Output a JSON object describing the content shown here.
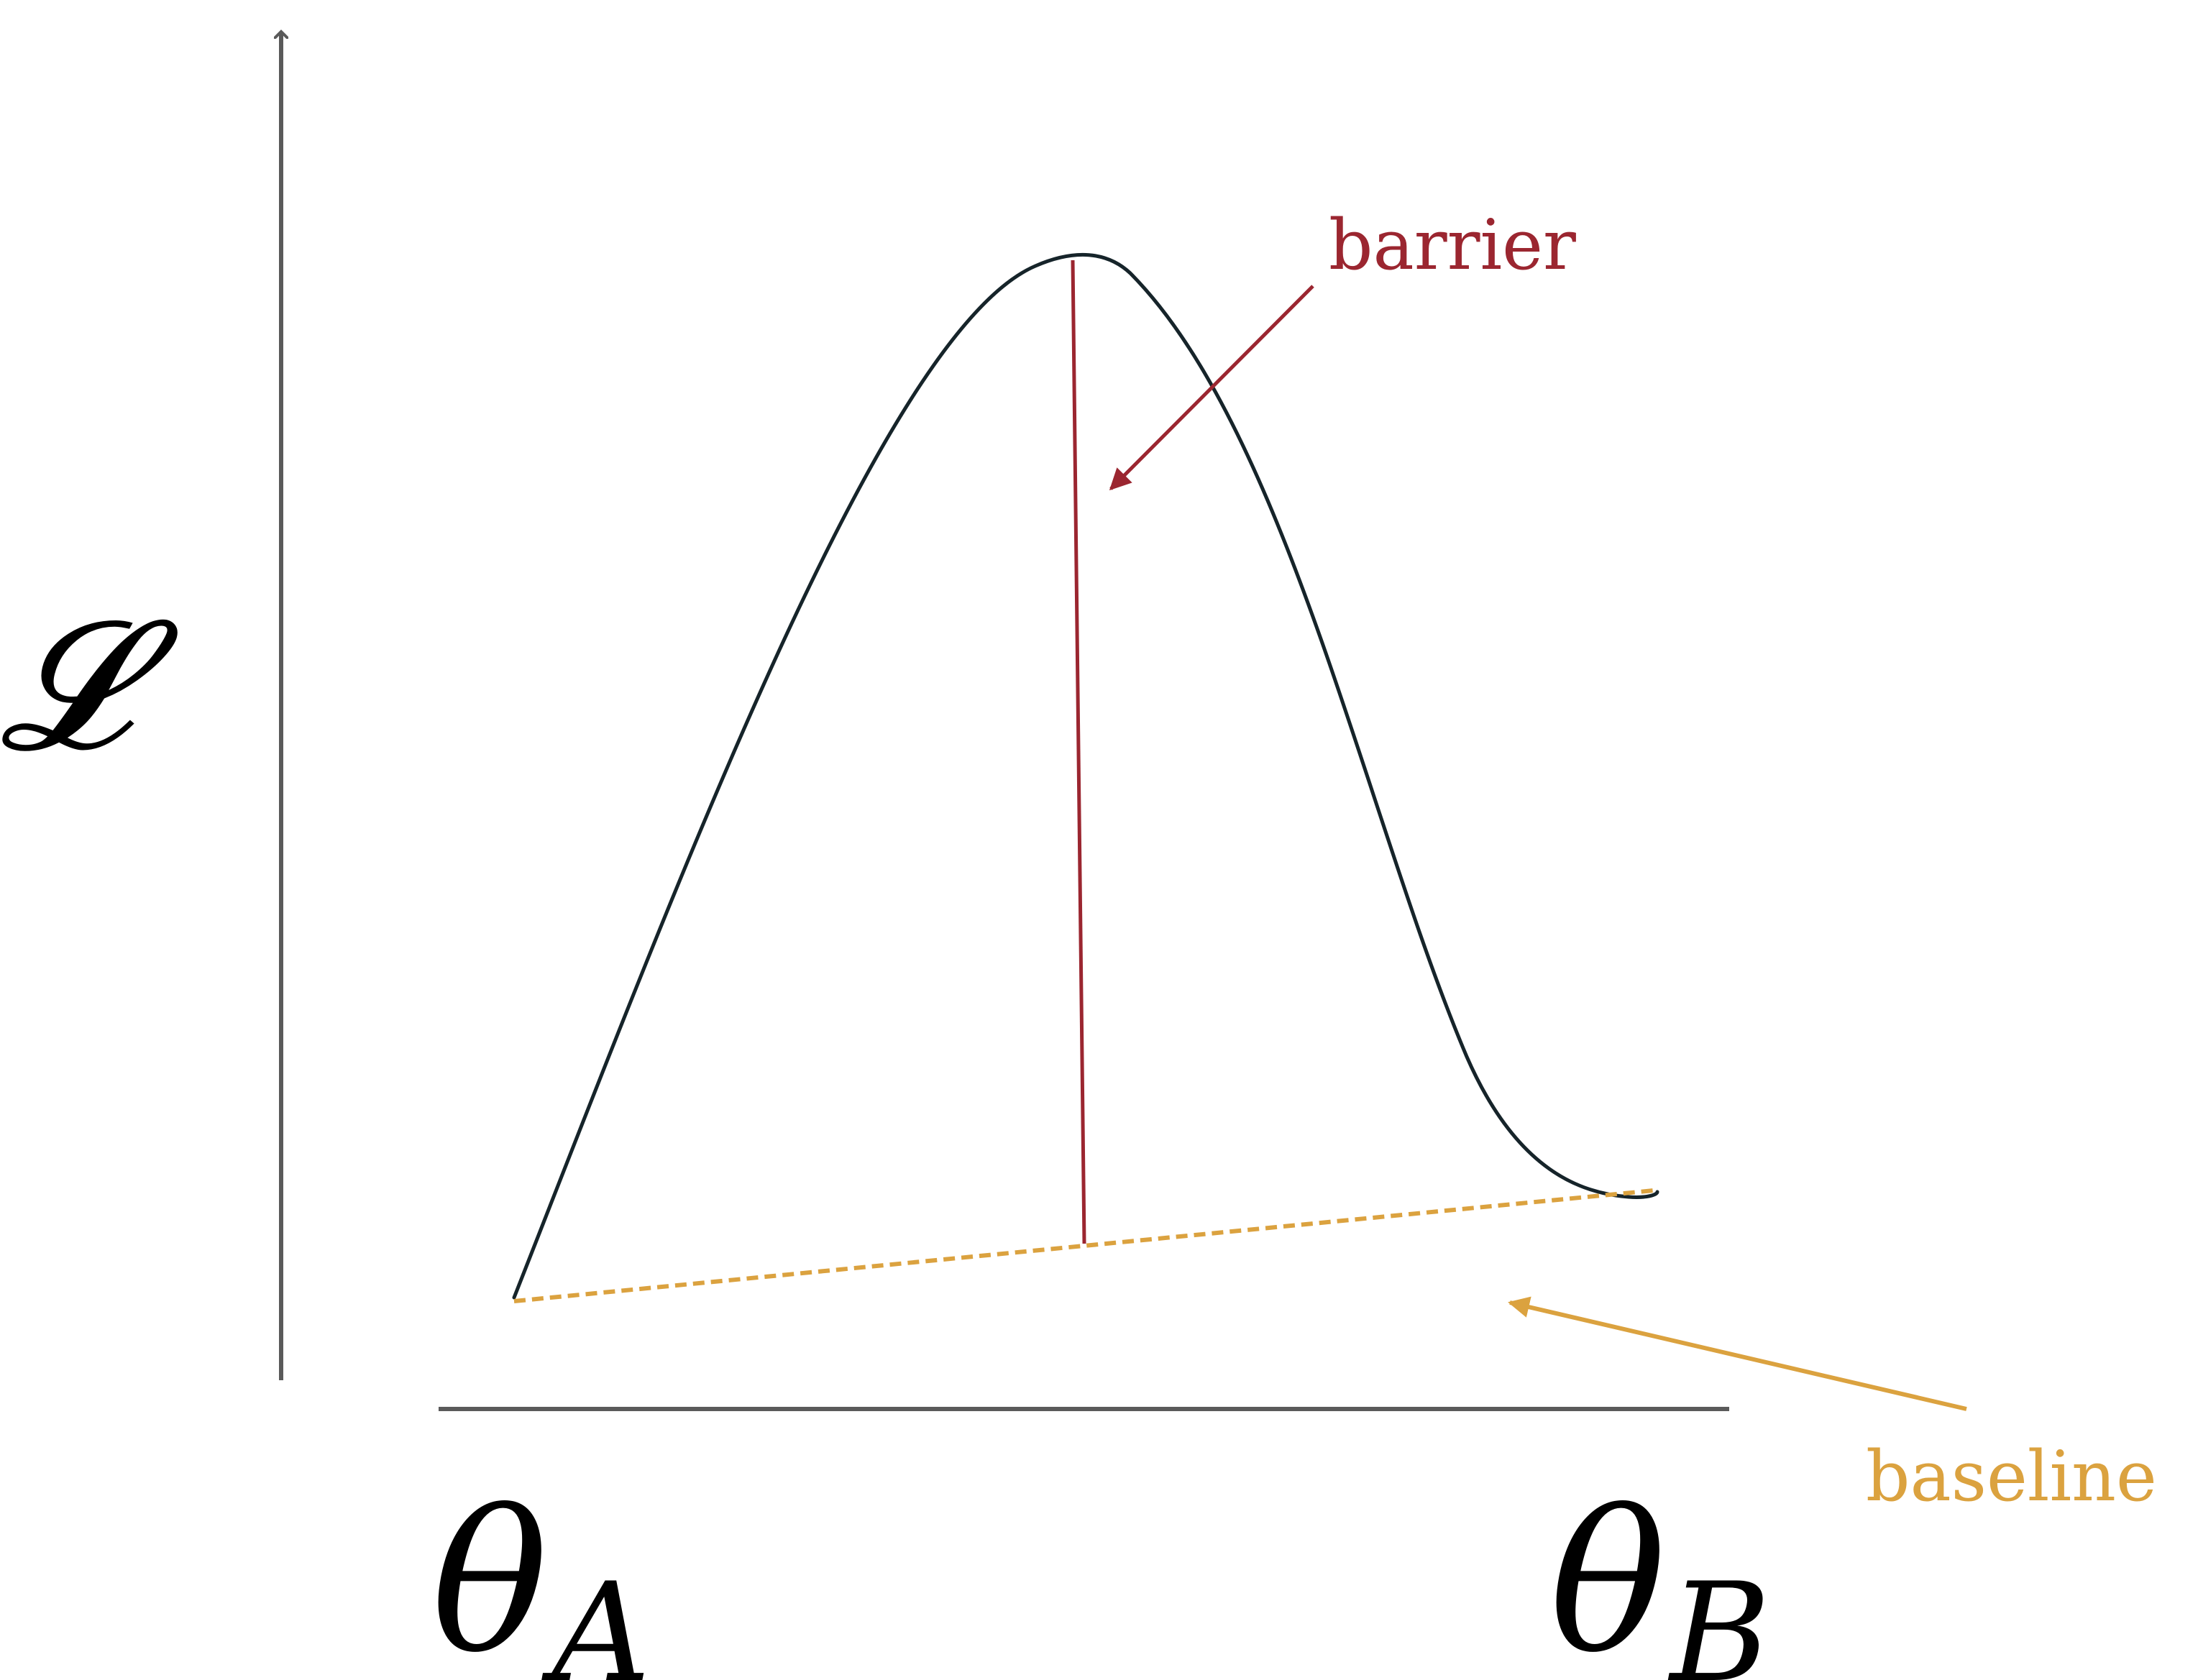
{
  "diagram": {
    "y_axis_label": "𝓛",
    "x_labels": {
      "left": {
        "symbol": "θ",
        "subscript": "A"
      },
      "right": {
        "symbol": "θ",
        "subscript": "B"
      }
    },
    "annotations": {
      "barrier": "barrier",
      "baseline": "baseline"
    },
    "colors": {
      "axis": "#5a5a5a",
      "curve": "#16242a",
      "barrier": "#9b2630",
      "baseline": "#dba23f",
      "text": "#000000"
    }
  }
}
